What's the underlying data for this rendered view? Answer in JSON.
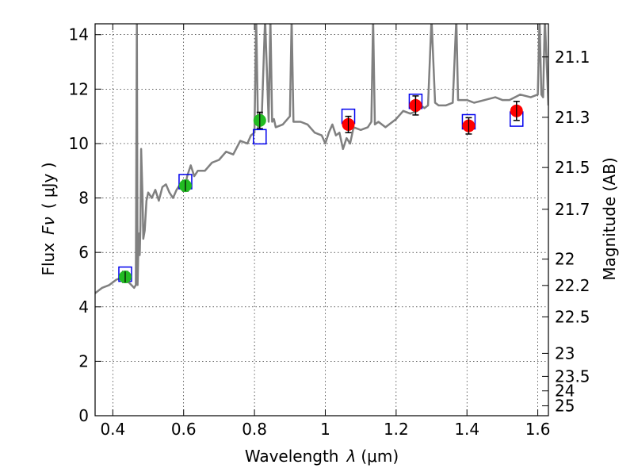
{
  "chart_data": {
    "type": "scatter",
    "xlabel_text": "Wavelength",
    "xlabel_math": "λ",
    "xlabel_unit": "(μm)",
    "ylabel_text": "Flux",
    "ylabel_math": "Fν",
    "ylabel_unit": "( μJy )",
    "y2label": "Magnitude (AB)",
    "xlim": [
      0.35,
      1.63
    ],
    "ylim": [
      0,
      14.4
    ],
    "x_ticks": [
      0.4,
      0.6,
      0.8,
      1.0,
      1.2,
      1.4,
      1.6
    ],
    "x_tick_labels": [
      "0.4",
      "0.6",
      "0.8",
      "1",
      "1.2",
      "1.4",
      "1.6"
    ],
    "y_ticks": [
      0,
      2,
      4,
      6,
      8,
      10,
      12,
      14
    ],
    "y_tick_labels": [
      "0",
      "2",
      "4",
      "6",
      "8",
      "10",
      "12",
      "14"
    ],
    "right_axis": {
      "labels": [
        "21.1",
        "21.3",
        "21.5",
        "21.7",
        "22",
        "22.2",
        "22.5",
        "23",
        "23.5",
        "24",
        "25"
      ],
      "mags": [
        21.1,
        21.3,
        21.5,
        21.7,
        22.0,
        22.2,
        22.5,
        23.0,
        23.5,
        24.0,
        25.0
      ]
    },
    "grid": true,
    "model_spectrum": {
      "color": "#808080",
      "x": [
        0.35,
        0.37,
        0.39,
        0.41,
        0.43,
        0.445,
        0.46,
        0.465,
        0.468,
        0.47,
        0.472,
        0.474,
        0.476,
        0.478,
        0.48,
        0.484,
        0.486,
        0.49,
        0.495,
        0.5,
        0.51,
        0.52,
        0.53,
        0.54,
        0.55,
        0.56,
        0.57,
        0.58,
        0.59,
        0.6,
        0.605,
        0.61,
        0.615,
        0.62,
        0.63,
        0.64,
        0.66,
        0.68,
        0.7,
        0.72,
        0.74,
        0.76,
        0.78,
        0.79,
        0.8,
        0.805,
        0.81,
        0.82,
        0.83,
        0.84,
        0.845,
        0.85,
        0.855,
        0.86,
        0.88,
        0.9,
        0.905,
        0.91,
        0.93,
        0.95,
        0.97,
        0.99,
        1.0,
        1.01,
        1.02,
        1.03,
        1.04,
        1.05,
        1.06,
        1.07,
        1.08,
        1.1,
        1.12,
        1.13,
        1.135,
        1.14,
        1.15,
        1.17,
        1.2,
        1.22,
        1.24,
        1.26,
        1.27,
        1.28,
        1.29,
        1.3,
        1.31,
        1.32,
        1.34,
        1.36,
        1.37,
        1.375,
        1.38,
        1.4,
        1.42,
        1.45,
        1.48,
        1.5,
        1.52,
        1.55,
        1.58,
        1.6,
        1.605,
        1.61,
        1.615,
        1.62,
        1.63
      ],
      "y": [
        4.5,
        4.7,
        4.8,
        5.0,
        5.1,
        4.9,
        4.7,
        4.8,
        14.6,
        4.8,
        6.0,
        6.7,
        5.9,
        7.0,
        9.8,
        8.0,
        6.5,
        6.8,
        7.9,
        8.2,
        8.0,
        8.3,
        7.9,
        8.4,
        8.5,
        8.2,
        8.0,
        8.3,
        8.5,
        8.4,
        8.5,
        8.8,
        9.0,
        9.2,
        8.8,
        9.0,
        9.0,
        9.3,
        9.4,
        9.7,
        9.6,
        10.1,
        10.0,
        10.3,
        10.4,
        14.6,
        10.6,
        10.7,
        14.6,
        10.8,
        14.6,
        10.8,
        10.9,
        10.6,
        10.7,
        11.0,
        14.6,
        10.8,
        10.8,
        10.7,
        10.4,
        10.3,
        10.0,
        10.4,
        10.7,
        10.3,
        10.4,
        9.8,
        10.2,
        10.0,
        10.6,
        10.5,
        10.6,
        10.8,
        14.6,
        10.7,
        10.8,
        10.6,
        10.9,
        11.2,
        11.1,
        11.2,
        11.4,
        11.3,
        11.4,
        14.6,
        11.5,
        11.4,
        11.4,
        11.5,
        14.6,
        11.6,
        11.6,
        11.6,
        11.5,
        11.6,
        11.7,
        11.6,
        11.6,
        11.8,
        11.7,
        11.8,
        14.6,
        11.8,
        11.7,
        14.6,
        11.4
      ]
    },
    "observed": [
      {
        "x": 0.435,
        "y": 5.1,
        "err": 0.2,
        "color": "#22bb22"
      },
      {
        "x": 0.605,
        "y": 8.45,
        "err": 0.2,
        "color": "#22bb22"
      },
      {
        "x": 0.815,
        "y": 10.85,
        "err": 0.3,
        "color": "#22bb22"
      },
      {
        "x": 1.065,
        "y": 10.7,
        "err": 0.3,
        "color": "#ff0000"
      },
      {
        "x": 1.255,
        "y": 11.4,
        "err": 0.35,
        "color": "#ff0000"
      },
      {
        "x": 1.405,
        "y": 10.65,
        "err": 0.3,
        "color": "#ff0000"
      },
      {
        "x": 1.54,
        "y": 11.2,
        "err": 0.35,
        "color": "#ff0000"
      }
    ],
    "model_photometry": {
      "color": "#0000ee",
      "x": [
        0.435,
        0.605,
        0.815,
        1.065,
        1.255,
        1.405,
        1.54
      ],
      "y": [
        5.2,
        8.6,
        10.25,
        11.0,
        11.55,
        10.8,
        10.9
      ]
    }
  }
}
